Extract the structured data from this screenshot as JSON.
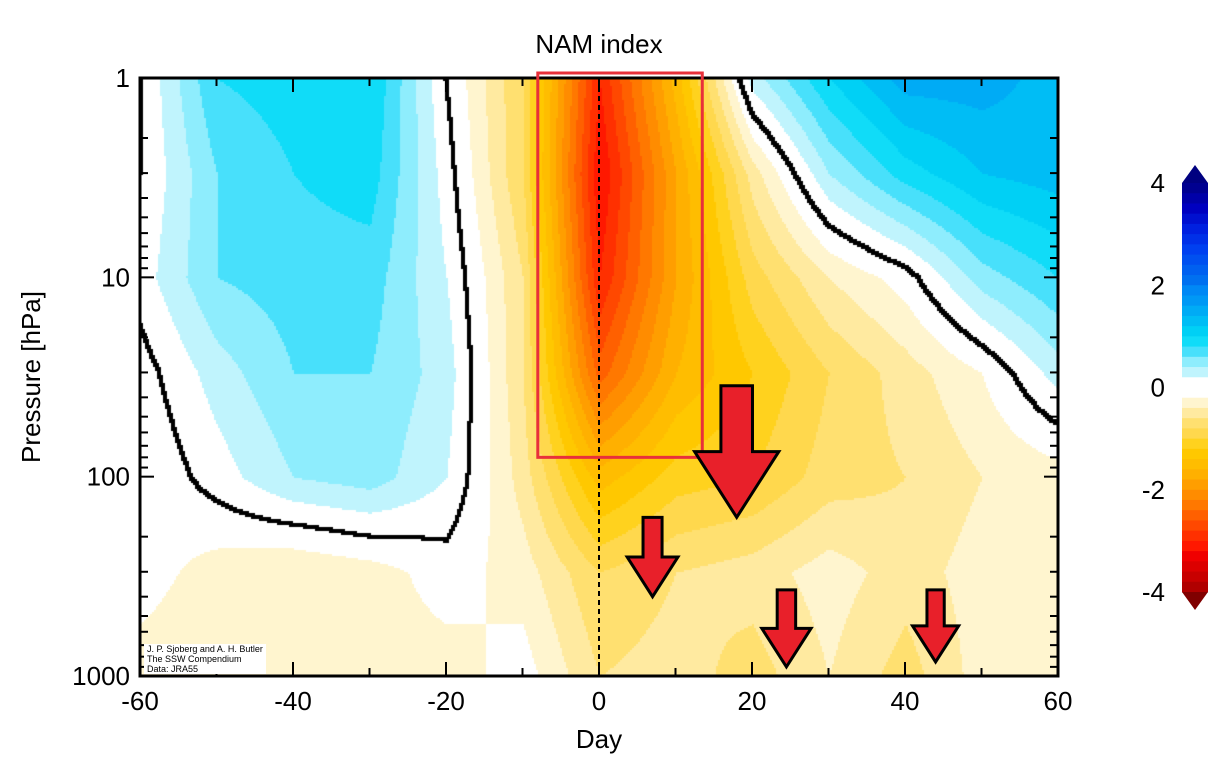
{
  "chart_data": {
    "type": "heatmap",
    "title": "NAM index",
    "xlabel": "Day",
    "ylabel": "Pressure [hPa]",
    "xlim": [
      -60,
      60
    ],
    "ylim": [
      1000,
      1
    ],
    "yscale": "log",
    "xticks": [
      -60,
      -40,
      -20,
      0,
      20,
      40,
      60
    ],
    "yticks": [
      1,
      10,
      100,
      1000
    ],
    "x": [
      -60,
      -50,
      -40,
      -30,
      -20,
      -10,
      0,
      10,
      20,
      30,
      40,
      50,
      60
    ],
    "y": [
      1,
      3,
      10,
      30,
      100,
      300,
      1000
    ],
    "z": [
      [
        0,
        0.8,
        0.9,
        1.0,
        0,
        -0.8,
        -3.0,
        -1.5,
        0.3,
        1.0,
        1.5,
        1.5,
        1.3
      ],
      [
        0,
        0.6,
        0.8,
        0.9,
        0.1,
        -0.8,
        -3.2,
        -1.8,
        -0.5,
        0.4,
        0.9,
        1.2,
        1.3
      ],
      [
        0.1,
        0.6,
        0.7,
        0.7,
        0.2,
        -0.6,
        -3.0,
        -1.8,
        -0.9,
        -0.4,
        -0.1,
        0.5,
        0.8
      ],
      [
        -0.1,
        0.3,
        0.6,
        0.6,
        0.3,
        -0.6,
        -2.5,
        -1.6,
        -1.2,
        -0.8,
        -0.5,
        -0.2,
        0.3
      ],
      [
        -0.2,
        0.1,
        0.4,
        0.5,
        0.2,
        -0.5,
        -1.5,
        -1.1,
        -1.0,
        -0.7,
        -0.6,
        -0.4,
        -0.3
      ],
      [
        -0.1,
        -0.3,
        -0.4,
        -0.3,
        -0.1,
        -0.3,
        -0.8,
        -0.6,
        -0.5,
        -0.3,
        -0.5,
        -0.3,
        -0.3
      ],
      [
        -0.3,
        -0.4,
        -0.3,
        -0.3,
        -0.3,
        -0.1,
        -0.6,
        -0.5,
        -0.7,
        -0.4,
        -0.7,
        -0.3,
        -0.3
      ]
    ],
    "contour_levels": [
      0
    ],
    "colorbar": {
      "range": [
        -4,
        4
      ],
      "ticks": [
        4,
        2,
        0,
        -2,
        -4
      ],
      "step": 0.2,
      "extend": "both"
    },
    "annotations": {
      "highlight_box": {
        "x": [
          -8,
          13.5
        ],
        "y": [
          1,
          80
        ],
        "color": "#e8303a"
      },
      "arrows_down": [
        {
          "x": 18,
          "y": [
            35,
            160
          ]
        },
        {
          "x": 7,
          "y": [
            160,
            400
          ]
        },
        {
          "x": 24.5,
          "y": [
            370,
            900
          ]
        },
        {
          "x": 44,
          "y": [
            370,
            850
          ]
        }
      ],
      "zero_line": {
        "x": 0,
        "style": "dashed"
      }
    },
    "credit": [
      "J. P. Sjoberg and A. H. Butler",
      "The SSW Compendium",
      "Data: JRA55"
    ]
  }
}
